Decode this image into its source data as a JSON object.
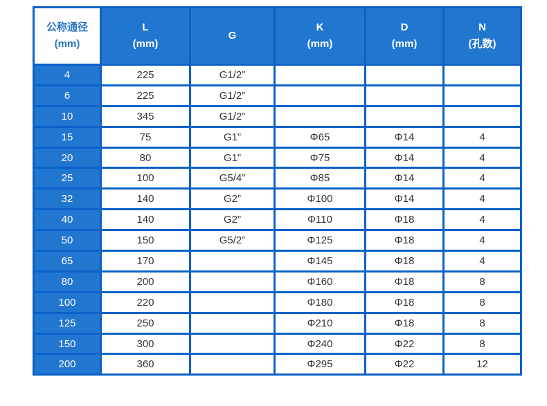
{
  "headers": [
    {
      "line1": "公称通径",
      "line2": "(mm)"
    },
    {
      "line1": "L",
      "line2": "(mm)"
    },
    {
      "line1": "G",
      "line2": ""
    },
    {
      "line1": "K",
      "line2": "(mm)"
    },
    {
      "line1": "D",
      "line2": "(mm)"
    },
    {
      "line1": "N",
      "line2": "(孔数)"
    }
  ],
  "rows": [
    [
      "4",
      "225",
      "G1/2”",
      "",
      "",
      ""
    ],
    [
      "6",
      "225",
      "G1/2”",
      "",
      "",
      ""
    ],
    [
      "10",
      "345",
      "G1/2”",
      "",
      "",
      ""
    ],
    [
      "15",
      "75",
      "G1”",
      "Φ65",
      "Φ14",
      "4"
    ],
    [
      "20",
      "80",
      "G1”",
      "Φ75",
      "Φ14",
      "4"
    ],
    [
      "25",
      "100",
      "G5/4”",
      "Φ85",
      "Φ14",
      "4"
    ],
    [
      "32",
      "140",
      "G2”",
      "Φ100",
      "Φ14",
      "4"
    ],
    [
      "40",
      "140",
      "G2”",
      "Φ110",
      "Φ18",
      "4"
    ],
    [
      "50",
      "150",
      "G5/2”",
      "Φ125",
      "Φ18",
      "4"
    ],
    [
      "65",
      "170",
      "",
      "Φ145",
      "Φ18",
      "4"
    ],
    [
      "80",
      "200",
      "",
      "Φ160",
      "Φ18",
      "8"
    ],
    [
      "100",
      "220",
      "",
      "Φ180",
      "Φ18",
      "8"
    ],
    [
      "125",
      "250",
      "",
      "Φ210",
      "Φ18",
      "8"
    ],
    [
      "150",
      "300",
      "",
      "Φ240",
      "Φ22",
      "8"
    ],
    [
      "200",
      "360",
      "",
      "Φ295",
      "Φ22",
      "12"
    ]
  ],
  "colors": {
    "header_bg": "#2176d0",
    "border": "#0a62c8",
    "header_first_text": "#2a72c4"
  }
}
